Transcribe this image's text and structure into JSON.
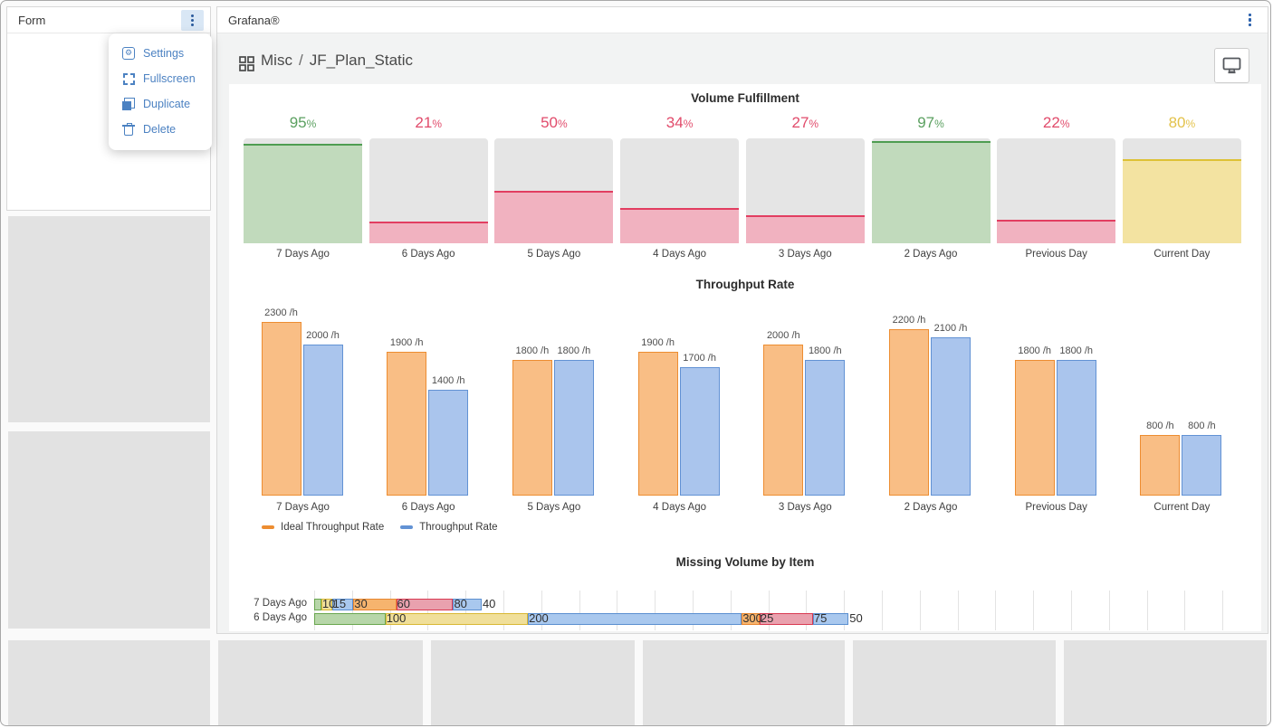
{
  "form_panel": {
    "title": "Form",
    "menu": {
      "items": [
        {
          "label": "Settings"
        },
        {
          "label": "Fullscreen"
        },
        {
          "label": "Duplicate"
        },
        {
          "label": "Delete"
        }
      ]
    }
  },
  "grafana_panel": {
    "title": "Grafana®",
    "breadcrumb": {
      "section": "Misc",
      "separator": "/",
      "page": "JF_Plan_Static"
    }
  },
  "chart_data": [
    {
      "type": "bar",
      "title": "Volume Fulfillment",
      "unit": "%",
      "categories": [
        "7 Days Ago",
        "6 Days Ago",
        "5 Days Ago",
        "4 Days Ago",
        "3 Days Ago",
        "2 Days Ago",
        "Previous Day",
        "Current Day"
      ],
      "values": [
        95,
        21,
        50,
        34,
        27,
        97,
        22,
        80
      ],
      "statuses": [
        "green",
        "red",
        "red",
        "red",
        "red",
        "green",
        "red",
        "yellow"
      ],
      "ylim": [
        0,
        100
      ],
      "grid": false
    },
    {
      "type": "bar",
      "title": "Throughput Rate",
      "unit": " /h",
      "categories": [
        "7 Days Ago",
        "6 Days Ago",
        "5 Days Ago",
        "4 Days Ago",
        "3 Days Ago",
        "2 Days Ago",
        "Previous Day",
        "Current Day"
      ],
      "series": [
        {
          "name": "Ideal Throughput Rate",
          "values": [
            2300,
            1900,
            1800,
            1900,
            2000,
            2200,
            1800,
            800
          ]
        },
        {
          "name": "Throughput Rate",
          "values": [
            2000,
            1400,
            1800,
            1700,
            1800,
            2100,
            1800,
            800
          ]
        }
      ],
      "legend_position": "bottom-left",
      "ylim": [
        0,
        2400
      ],
      "grid": false
    },
    {
      "type": "bar",
      "orientation": "horizontal-stacked",
      "title": "Missing Volume by Item",
      "rows": [
        {
          "label": "7 Days Ago",
          "segments": [
            {
              "value": 10,
              "color": "green"
            },
            {
              "value": 15,
              "color": "yellow"
            },
            {
              "value": 30,
              "color": "blue"
            },
            {
              "value": 60,
              "color": "orange"
            },
            {
              "value": 80,
              "color": "red"
            },
            {
              "value": 40,
              "color": "blue"
            }
          ]
        },
        {
          "label": "6 Days Ago",
          "segments": [
            {
              "value": 100,
              "color": "green"
            },
            {
              "value": 200,
              "color": "yellow"
            },
            {
              "value": 300,
              "color": "blue"
            },
            {
              "value": 25,
              "color": "orange"
            },
            {
              "value": 75,
              "color": "red"
            },
            {
              "value": 50,
              "color": "blue"
            }
          ]
        }
      ],
      "grid": true
    }
  ],
  "colors": {
    "accent_blue": "#4c82c2",
    "status": {
      "green": {
        "fill": "#c1dabc",
        "line": "#4e9d51",
        "text": "#5ba060"
      },
      "red": {
        "fill": "#f1b2c0",
        "line": "#e23e61",
        "text": "#e14b6b"
      },
      "yellow": {
        "fill": "#f3e3a1",
        "line": "#ddc135",
        "text": "#e3c24b"
      }
    },
    "series": {
      "ideal": "#ed8d31",
      "ideal_fill": "#f9be85",
      "actual": "#6292d4",
      "actual_fill": "#aac5ed"
    },
    "segments": {
      "green": {
        "fill": "#b7d6a9",
        "line": "#6aa74f"
      },
      "yellow": {
        "fill": "#f0df9a",
        "line": "#d9b834"
      },
      "blue": {
        "fill": "#a9c8ee",
        "line": "#5b8fd0"
      },
      "orange": {
        "fill": "#f6b46e",
        "line": "#e8872f"
      },
      "red": {
        "fill": "#e9a1ae",
        "line": "#d93a52"
      }
    }
  }
}
